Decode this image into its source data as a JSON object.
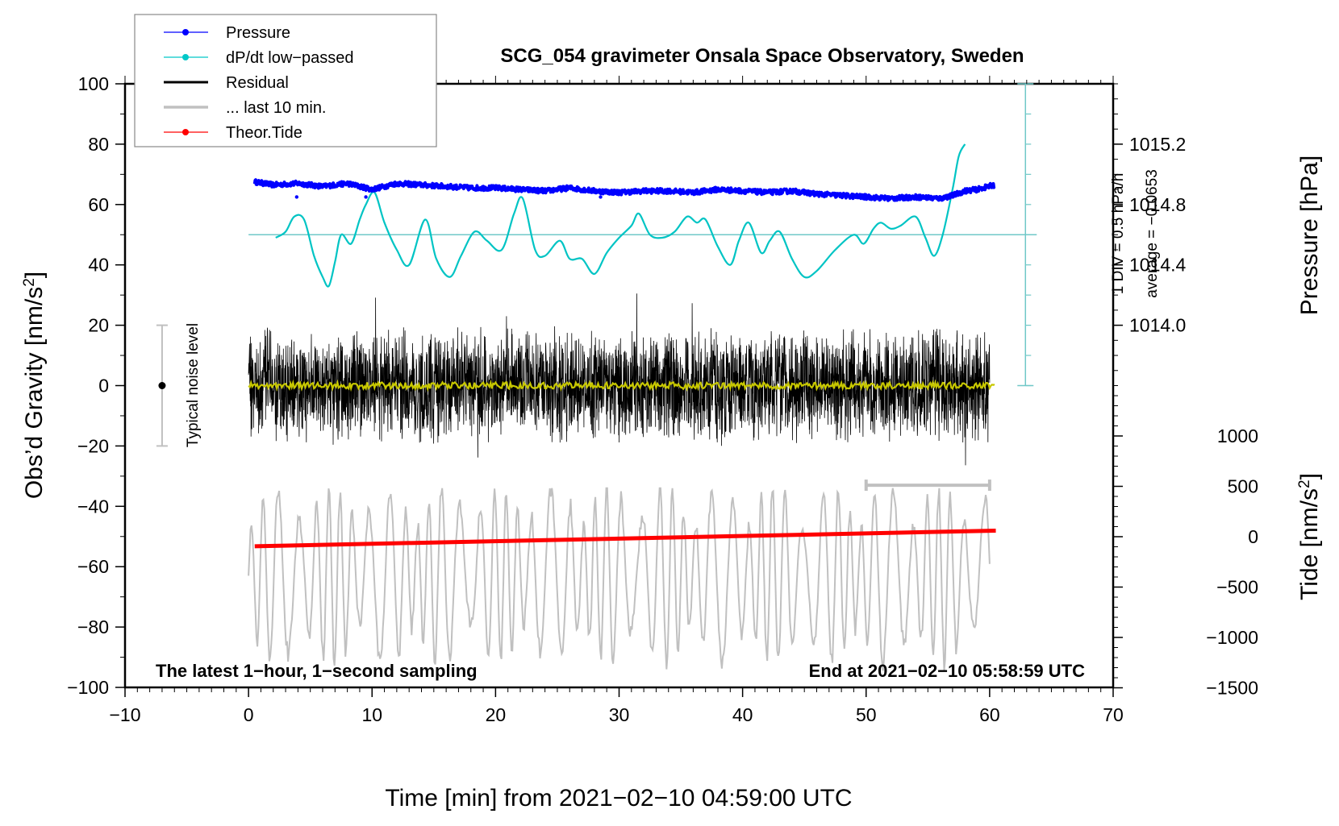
{
  "chart_data": {
    "type": "line",
    "title": "SCG_054 gravimeter Onsala Space Observatory, Sweden",
    "xlabel": "Time [min] from 2021−02−10 04:59:00 UTC",
    "ylabel_left": "Obs’d Gravity [nm/s²]",
    "ylabel_left_main": "Obs’d Gravity [nm/s",
    "ylabel_left_sup": "2",
    "ylabel_left_end": "]",
    "ylabel_right_pressure": "Pressure [hPa]",
    "ylabel_right_tide_main": "Tide [nm/s",
    "ylabel_right_tide_sup": "2",
    "ylabel_right_tide_end": "]",
    "xlim": [
      -10,
      70
    ],
    "ylim_left": [
      -100,
      100
    ],
    "x_ticks": [
      -10,
      0,
      10,
      20,
      30,
      40,
      50,
      60,
      70
    ],
    "x_tick_labels": [
      "−10",
      "0",
      "10",
      "20",
      "30",
      "40",
      "50",
      "60",
      "70"
    ],
    "y_left_ticks": [
      100,
      80,
      60,
      40,
      20,
      0,
      -20,
      -40,
      -60,
      -80,
      -100
    ],
    "y_left_tick_labels": [
      "100",
      "80",
      "60",
      "40",
      "20",
      "0",
      "−20",
      "−40",
      "−60",
      "−80",
      "−100"
    ],
    "pressure_axis": {
      "ticks": [
        1015.2,
        1014.8,
        1014.4,
        1014.0
      ],
      "tick_labels": [
        "1015.2",
        "1014.8",
        "1014.4",
        "1014.0"
      ],
      "gravity_equiv": [
        80,
        60,
        40,
        20
      ]
    },
    "tide_axis": {
      "ticks": [
        1000,
        500,
        0,
        -500,
        -1000,
        -1500
      ],
      "tick_labels": [
        "1000",
        "500",
        "0",
        "−500",
        "−1000",
        "−1500"
      ],
      "range": [
        -1500,
        1500
      ]
    },
    "dpdt_scale": {
      "note": "1 DIV = 0.5 hPa/h",
      "average_note": "average = −0.0653",
      "zero_gravity_equiv": 50,
      "div_gravity_units": 10
    },
    "legend": [
      {
        "label": "Pressure",
        "color": "#0000ff",
        "marker": "dot"
      },
      {
        "label": "dP/dt low−passed",
        "color": "#00c8c8",
        "marker": "dot"
      },
      {
        "label": "Residual",
        "color": "#000000",
        "marker": "line"
      },
      {
        "label": "... last 10 min.",
        "color": "#c0c0c0",
        "marker": "line"
      },
      {
        "label": "Theor.Tide",
        "color": "#ff0000",
        "marker": "dot"
      }
    ],
    "legend_position": "top-left",
    "annotations": {
      "left_note": "The latest 1−hour, 1−second sampling",
      "right_note": "End at 2021−02−10 05:58:59 UTC",
      "noise_label": "Typical noise level",
      "noise_level_range": [
        -20,
        20
      ],
      "noise_level_x": -7,
      "last10_bar_x_range": [
        50,
        60
      ],
      "last10_bar_level": -33
    },
    "series": [
      {
        "name": "Pressure",
        "color": "#0000ff",
        "unit": "gravity-axis equivalent",
        "x": [
          0.5,
          2,
          4,
          6,
          8,
          10,
          12,
          14,
          16,
          18,
          20,
          22,
          24,
          26,
          28,
          30,
          32,
          34,
          36,
          38,
          40,
          42,
          44,
          46,
          48,
          50,
          52,
          54,
          56,
          57,
          58,
          59,
          60.4
        ],
        "values": [
          67.5,
          66.5,
          67,
          66,
          67,
          65,
          67,
          66.5,
          66,
          65.5,
          65.5,
          65,
          64.5,
          65.5,
          64.5,
          64,
          64.5,
          64.5,
          64,
          65,
          64.5,
          64,
          64.5,
          63.5,
          63,
          62.5,
          62,
          62.5,
          62,
          63,
          64.5,
          65,
          66.5
        ]
      },
      {
        "name": "dP/dt low-passed",
        "color": "#00c8c8",
        "unit": "gravity-axis equivalent",
        "x": [
          2.2,
          3,
          3.7,
          4.5,
          5.3,
          6,
          6.5,
          7,
          7.5,
          8.3,
          9,
          9.5,
          10.2,
          11,
          12,
          13,
          14.3,
          15.2,
          16.3,
          17.2,
          18.3,
          19.3,
          20.5,
          21.5,
          22.2,
          23.2,
          24,
          25.2,
          26,
          27,
          28,
          29,
          30,
          31,
          31.6,
          32.5,
          33.5,
          34.5,
          35.5,
          36.3,
          37,
          38,
          39,
          39.7,
          40.5,
          41.5,
          42.2,
          43,
          44,
          45,
          46,
          47.5,
          49,
          49.8,
          50.6,
          51.2,
          52,
          52.8,
          54,
          54.8,
          55.5,
          56.2,
          57,
          57.5,
          58
        ],
        "values": [
          49,
          51,
          56,
          55,
          43,
          36,
          33,
          41,
          50,
          47,
          55,
          60,
          64,
          54,
          45,
          40,
          55,
          42,
          36,
          43,
          51,
          48,
          45,
          57,
          62,
          45,
          43,
          48,
          42,
          42,
          37,
          44,
          49,
          53,
          57,
          50,
          49,
          51,
          56,
          54,
          55,
          46,
          40,
          48,
          54,
          44,
          48,
          51,
          42,
          36,
          38,
          45,
          50,
          47,
          52,
          54,
          52,
          53,
          56,
          49,
          43,
          50,
          65,
          76,
          80
        ]
      },
      {
        "name": "Residual",
        "color": "#000000",
        "description": "1-second residual, noisy around 0, typical envelope ±20",
        "x_range": [
          0,
          60
        ],
        "envelope": [
          -25,
          25
        ],
        "extremes": [
          -44,
          40
        ]
      },
      {
        "name": "Residual smoothed",
        "color": "#c8c800",
        "x_range": [
          0,
          60.5
        ],
        "values_approx": 0
      },
      {
        "name": "... last 10 min.",
        "color": "#c0c0c0",
        "description": "last 10 min of residual overlaid (scaled) below, oscillating between about -93 and -35",
        "x_range": [
          0,
          60
        ],
        "center": -63,
        "amplitude": 20
      },
      {
        "name": "Theor.Tide",
        "color": "#ff0000",
        "unit": "nm/s² (tide axis)",
        "x": [
          0.5,
          60.5
        ],
        "values": [
          -95,
          60
        ]
      }
    ]
  }
}
